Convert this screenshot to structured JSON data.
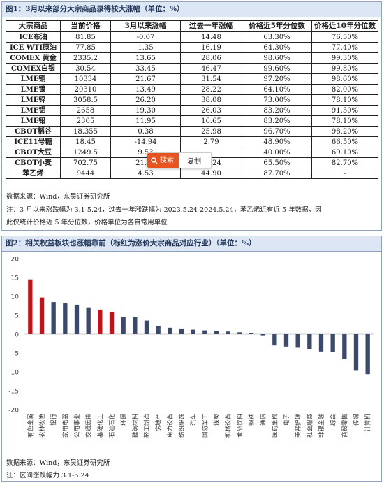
{
  "figure1": {
    "title": "图1：3月以来部分大宗商品录得较大涨幅（单位：%）",
    "columns": [
      "大宗商品",
      "当前价格",
      "3月以来涨幅",
      "过去一年涨幅",
      "价格近5年分位数",
      "价格近10年分位数"
    ],
    "rows": [
      [
        "ICE布油",
        "81.85",
        "-0.07",
        "14.48",
        "63.30%",
        "76.50%"
      ],
      [
        "ICE WTI原油",
        "77.85",
        "1.35",
        "16.19",
        "64.30%",
        "77.40%"
      ],
      [
        "COMEX 黄金",
        "2335.2",
        "13.65",
        "28.06",
        "98.60%",
        "99.30%"
      ],
      [
        "COMEX白银",
        "30.54",
        "33.45",
        "46.47",
        "99.60%",
        "99.80%"
      ],
      [
        "LME铜",
        "10334",
        "21.67",
        "31.54",
        "97.20%",
        "98.60%"
      ],
      [
        "LME镍",
        "20310",
        "13.49",
        "28.22",
        "64.10%",
        "82.00%"
      ],
      [
        "LME锌",
        "3058.5",
        "26.20",
        "38.08",
        "73.00%",
        "78.10%"
      ],
      [
        "LME铝",
        "2658",
        "19.30",
        "26.03",
        "83.20%",
        "91.50%"
      ],
      [
        "LME铅",
        "2305",
        "11.95",
        "16.65",
        "83.20%",
        "78.10%"
      ],
      [
        "CBOT稻谷",
        "18.355",
        "0.38",
        "25.98",
        "96.70%",
        "98.20%"
      ],
      [
        "ICE11号糖",
        "18.45",
        "-14.94",
        "2.79",
        "48.90%",
        "66.50%"
      ],
      [
        "CBOT大豆",
        "1249.5",
        "9.53",
        "",
        "40.00%",
        "69.10%"
      ],
      [
        "CBOT小麦",
        "702.75",
        "21.95",
        "34.24",
        "65.50%",
        "82.70%"
      ],
      [
        "苯乙烯",
        "9444",
        "4.53",
        "44.90",
        "87.70%",
        "-"
      ]
    ],
    "source": "数据来源：Wind，东吴证券研究所",
    "note_line1": "注：3 月以来涨跌幅为 3.1-5.24，过去一年涨跌幅为 2023.5.24-2024.5.24，苯乙烯近有近 5 年数据，因",
    "note_line2": "此仅统计价格近 5 年分位数，价格单位为各自常用单位"
  },
  "popup": {
    "search_label": "搜索",
    "copy_label": "复制",
    "search_icon": "magnifier-icon"
  },
  "figure2": {
    "title": "图2：相关权益板块也涨幅靠前（标红为涨价大宗商品对应行业）（单位：%）",
    "source": "数据来源：Wind，东吴证券研究所",
    "note": "注：区间涨跌幅为 3.1-5.24"
  },
  "chart_data": {
    "type": "bar",
    "categories": [
      "有色金属",
      "农林牧渔",
      "银行",
      "家用电器",
      "公用事业",
      "交通运输",
      "基础化工",
      "石油石化",
      "环保",
      "建筑材料",
      "轻工制造",
      "房地产",
      "电力设备",
      "纺织服饰",
      "汽车",
      "国防军工",
      "煤炭",
      "机械设备",
      "食品饮料",
      "钢铁",
      "通信",
      "医药生物",
      "电子",
      "美容护理",
      "社会服务",
      "非银金融",
      "综合",
      "商贸零售",
      "传媒",
      "计算机"
    ],
    "values": [
      14.5,
      9.7,
      8.5,
      8.2,
      7.8,
      7.1,
      6.5,
      5.9,
      4.6,
      4.5,
      3.6,
      2.2,
      1.7,
      1.5,
      1.2,
      1.0,
      0.9,
      0.7,
      0.5,
      0.2,
      -0.3,
      -3.0,
      -3.3,
      -3.6,
      -4.0,
      -4.6,
      -4.8,
      -6.6,
      -9.7,
      -10.6
    ],
    "highlight": [
      true,
      true,
      false,
      false,
      false,
      false,
      true,
      true,
      false,
      false,
      false,
      false,
      false,
      false,
      false,
      false,
      false,
      false,
      false,
      false,
      false,
      false,
      false,
      false,
      false,
      false,
      false,
      false,
      false,
      false
    ],
    "ylim": [
      -20,
      20
    ],
    "yticks": [
      -20,
      -15,
      -10,
      -5,
      0,
      5,
      10,
      15,
      20
    ],
    "colors": {
      "highlight": "#c0141b",
      "default": "#3b4a6b"
    },
    "grid": false,
    "legend": "none"
  }
}
